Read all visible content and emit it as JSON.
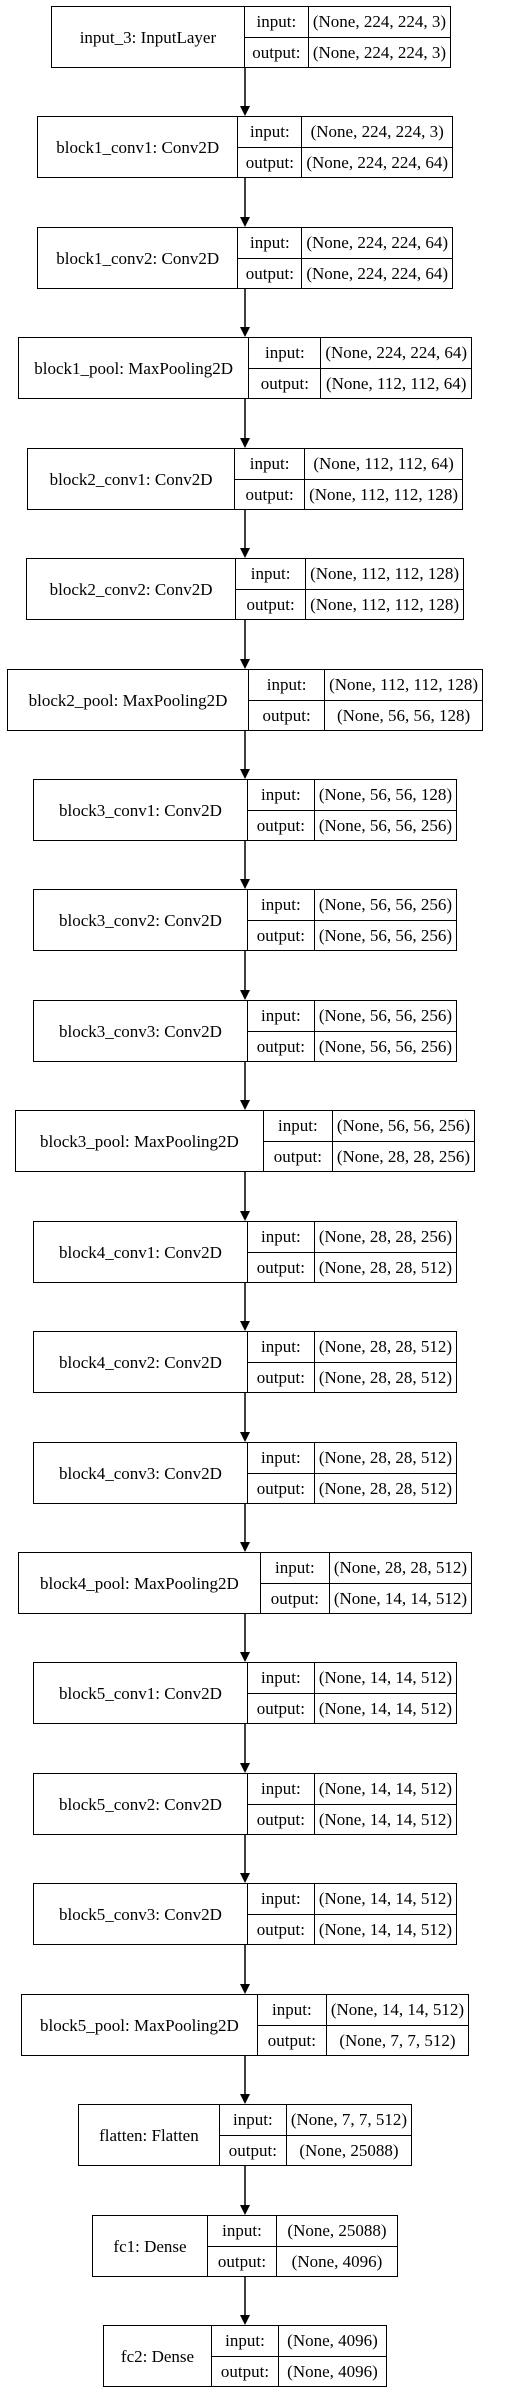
{
  "diagram": {
    "type": "keras-model-plot",
    "layers": [
      {
        "name": "input_3: InputLayer",
        "input_label": "input:",
        "input": "(None, 224, 224, 3)",
        "output_label": "output:",
        "output": "(None, 224, 224, 3)"
      },
      {
        "name": "block1_conv1: Conv2D",
        "input_label": "input:",
        "input": "(None, 224, 224, 3)",
        "output_label": "output:",
        "output": "(None, 224, 224, 64)"
      },
      {
        "name": "block1_conv2: Conv2D",
        "input_label": "input:",
        "input": "(None, 224, 224, 64)",
        "output_label": "output:",
        "output": "(None, 224, 224, 64)"
      },
      {
        "name": "block1_pool: MaxPooling2D",
        "input_label": "input:",
        "input": "(None, 224, 224, 64)",
        "output_label": "output:",
        "output": "(None, 112, 112, 64)"
      },
      {
        "name": "block2_conv1: Conv2D",
        "input_label": "input:",
        "input": "(None, 112, 112, 64)",
        "output_label": "output:",
        "output": "(None, 112, 112, 128)"
      },
      {
        "name": "block2_conv2: Conv2D",
        "input_label": "input:",
        "input": "(None, 112, 112, 128)",
        "output_label": "output:",
        "output": "(None, 112, 112, 128)"
      },
      {
        "name": "block2_pool: MaxPooling2D",
        "input_label": "input:",
        "input": "(None, 112, 112, 128)",
        "output_label": "output:",
        "output": "(None, 56, 56, 128)"
      },
      {
        "name": "block3_conv1: Conv2D",
        "input_label": "input:",
        "input": "(None, 56, 56, 128)",
        "output_label": "output:",
        "output": "(None, 56, 56, 256)"
      },
      {
        "name": "block3_conv2: Conv2D",
        "input_label": "input:",
        "input": "(None, 56, 56, 256)",
        "output_label": "output:",
        "output": "(None, 56, 56, 256)"
      },
      {
        "name": "block3_conv3: Conv2D",
        "input_label": "input:",
        "input": "(None, 56, 56, 256)",
        "output_label": "output:",
        "output": "(None, 56, 56, 256)"
      },
      {
        "name": "block3_pool: MaxPooling2D",
        "input_label": "input:",
        "input": "(None, 56, 56, 256)",
        "output_label": "output:",
        "output": "(None, 28, 28, 256)"
      },
      {
        "name": "block4_conv1: Conv2D",
        "input_label": "input:",
        "input": "(None, 28, 28, 256)",
        "output_label": "output:",
        "output": "(None, 28, 28, 512)"
      },
      {
        "name": "block4_conv2: Conv2D",
        "input_label": "input:",
        "input": "(None, 28, 28, 512)",
        "output_label": "output:",
        "output": "(None, 28, 28, 512)"
      },
      {
        "name": "block4_conv3: Conv2D",
        "input_label": "input:",
        "input": "(None, 28, 28, 512)",
        "output_label": "output:",
        "output": "(None, 28, 28, 512)"
      },
      {
        "name": "block4_pool: MaxPooling2D",
        "input_label": "input:",
        "input": "(None, 28, 28, 512)",
        "output_label": "output:",
        "output": "(None, 14, 14, 512)"
      },
      {
        "name": "block5_conv1: Conv2D",
        "input_label": "input:",
        "input": "(None, 14, 14, 512)",
        "output_label": "output:",
        "output": "(None, 14, 14, 512)"
      },
      {
        "name": "block5_conv2: Conv2D",
        "input_label": "input:",
        "input": "(None, 14, 14, 512)",
        "output_label": "output:",
        "output": "(None, 14, 14, 512)"
      },
      {
        "name": "block5_conv3: Conv2D",
        "input_label": "input:",
        "input": "(None, 14, 14, 512)",
        "output_label": "output:",
        "output": "(None, 14, 14, 512)"
      },
      {
        "name": "block5_pool: MaxPooling2D",
        "input_label": "input:",
        "input": "(None, 14, 14, 512)",
        "output_label": "output:",
        "output": "(None, 7, 7, 512)"
      },
      {
        "name": "flatten: Flatten",
        "input_label": "input:",
        "input": "(None, 7, 7, 512)",
        "output_label": "output:",
        "output": "(None, 25088)"
      },
      {
        "name": "fc1: Dense",
        "input_label": "input:",
        "input": "(None, 25088)",
        "output_label": "output:",
        "output": "(None, 4096)"
      },
      {
        "name": "fc2: Dense",
        "input_label": "input:",
        "input": "(None, 4096)",
        "output_label": "output:",
        "output": "(None, 4096)"
      }
    ]
  }
}
